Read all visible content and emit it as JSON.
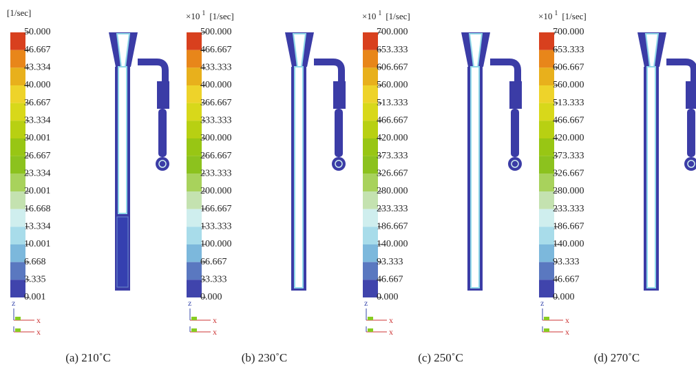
{
  "colorbar_colors": [
    "#d8401e",
    "#e8861a",
    "#e8b01c",
    "#eed32a",
    "#d8d81a",
    "#b8d012",
    "#98c614",
    "#8cc21e",
    "#a8d25c",
    "#c4e2b0",
    "#cfeeee",
    "#a8dcea",
    "#7cb8dc",
    "#5a78c0",
    "#4044ac"
  ],
  "panels": [
    {
      "unit": "[1/sec]",
      "caption": "(a) 210˚C",
      "axis_labels": [
        "z",
        "x",
        "x"
      ],
      "labels": [
        "50.000",
        "46.667",
        "43.334",
        "40.000",
        "36.667",
        "33.334",
        "30.001",
        "26.667",
        "23.334",
        "20.001",
        "16.668",
        "13.334",
        "10.001",
        "6.668",
        "3.335",
        "0.001"
      ]
    },
    {
      "scale_base": "×10",
      "scale_exp": "1",
      "unit": "[1/sec]",
      "caption": "(b) 230˚C",
      "axis_labels": [
        "z",
        "x",
        "x"
      ],
      "labels": [
        "500.000",
        "466.667",
        "433.333",
        "400.000",
        "366.667",
        "333.333",
        "300.000",
        "266.667",
        "233.333",
        "200.000",
        "166.667",
        "133.333",
        "100.000",
        "66.667",
        "33.333",
        "0.000"
      ]
    },
    {
      "scale_base": "×10",
      "scale_exp": "1",
      "unit": "[1/sec]",
      "caption": "(c) 250˚C",
      "axis_labels": [
        "z",
        "x",
        "x"
      ],
      "labels": [
        "700.000",
        "653.333",
        "606.667",
        "560.000",
        "513.333",
        "466.667",
        "420.000",
        "373.333",
        "326.667",
        "280.000",
        "233.333",
        "186.667",
        "140.000",
        "93.333",
        "46.667",
        "0.000"
      ]
    },
    {
      "scale_base": "×10",
      "scale_exp": "1",
      "unit": "[1/sec]",
      "caption": "(d) 270˚C",
      "axis_labels": [
        "z",
        "x",
        "x"
      ],
      "labels": [
        "700.000",
        "653.333",
        "606.667",
        "560.000",
        "513.333",
        "466.667",
        "420.000",
        "373.333",
        "326.667",
        "280.000",
        "233.333",
        "186.667",
        "140.000",
        "93.333",
        "46.667",
        "0.000"
      ]
    }
  ]
}
